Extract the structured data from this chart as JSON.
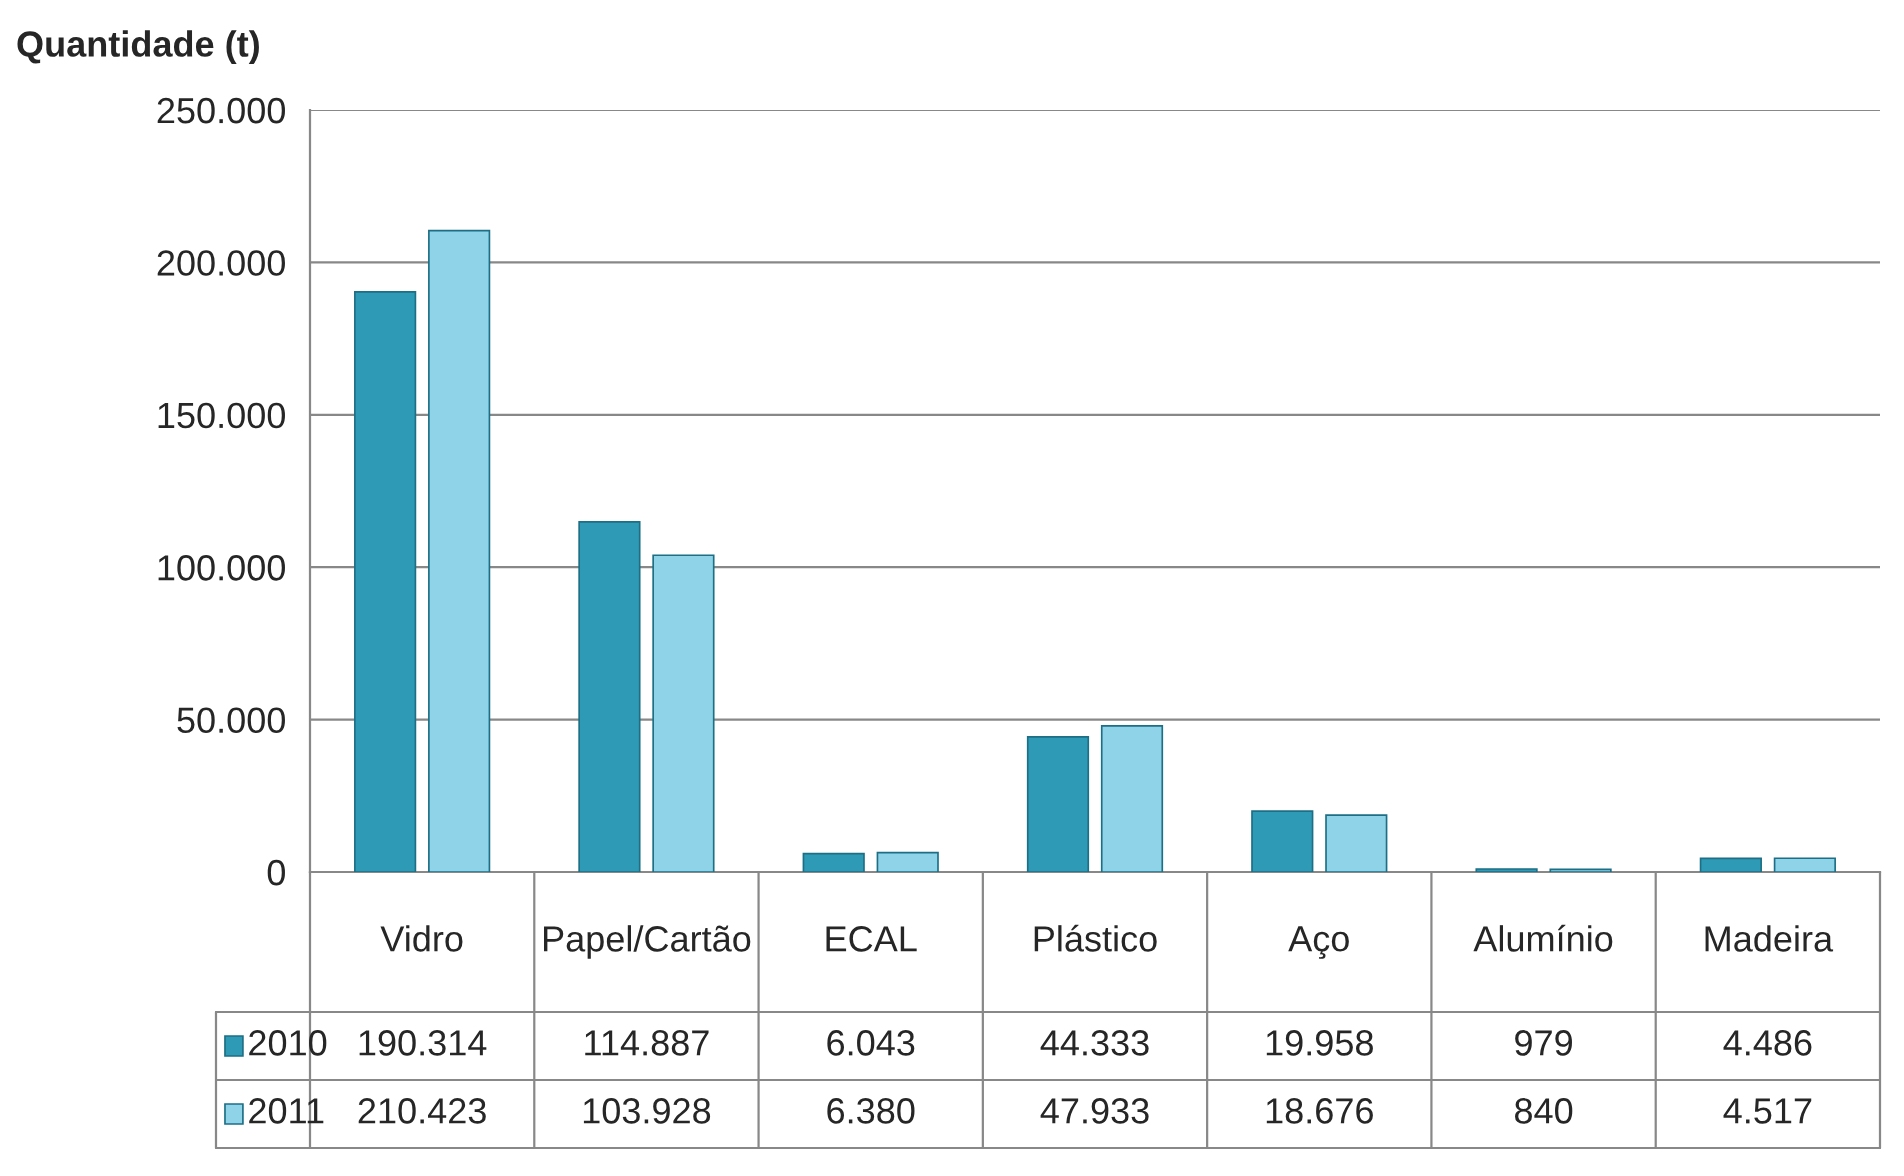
{
  "chart_data": {
    "type": "bar",
    "ylabel": "Quantidade (t)",
    "categories": [
      "Vidro",
      "Papel/Cartão",
      "ECAL",
      "Plástico",
      "Aço",
      "Alumínio",
      "Madeira"
    ],
    "series": [
      {
        "name": "2010",
        "color": "#2e9ab5",
        "values": [
          190314,
          114887,
          6043,
          44333,
          19958,
          979,
          4486
        ],
        "value_labels": [
          "190.314",
          "114.887",
          "6.043",
          "44.333",
          "19.958",
          "979",
          "4.486"
        ]
      },
      {
        "name": "2011",
        "color": "#8fd3e8",
        "values": [
          210423,
          103928,
          6380,
          47933,
          18676,
          840,
          4517
        ],
        "value_labels": [
          "210.423",
          "103.928",
          "6.380",
          "47.933",
          "18.676",
          "840",
          "4.517"
        ]
      }
    ],
    "ylim": [
      0,
      250000
    ],
    "yticks": [
      0,
      {
        "value": 50000,
        "label": "50.000"
      },
      {
        "value": 100000,
        "label": "100.000"
      },
      {
        "value": 150000,
        "label": "150.000"
      },
      {
        "value": 200000,
        "label": "200.000"
      },
      {
        "value": 250000,
        "label": "250.000"
      }
    ],
    "grid": "y",
    "legend": "bottom"
  }
}
